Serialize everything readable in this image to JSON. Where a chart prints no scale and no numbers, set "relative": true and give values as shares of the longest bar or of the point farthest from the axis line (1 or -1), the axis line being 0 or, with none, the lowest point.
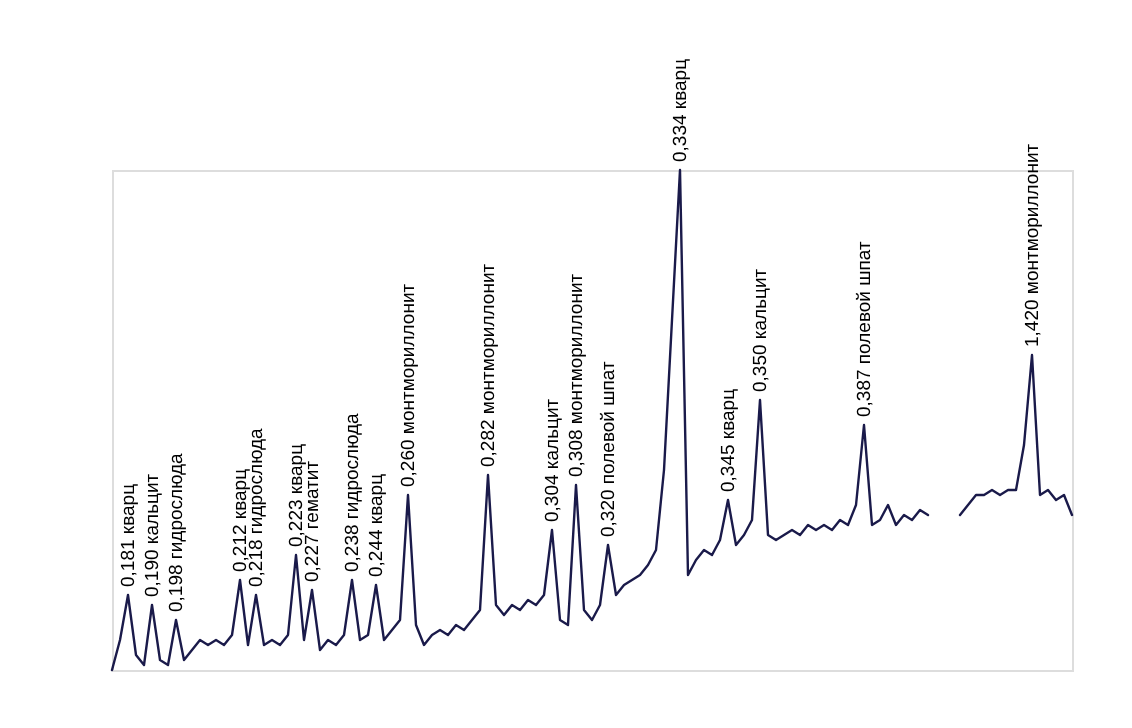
{
  "chart_data": {
    "type": "line",
    "relative": true,
    "categories": [
      null,
      null,
      null,
      null,
      null,
      null,
      null,
      null,
      null,
      null,
      null,
      null,
      null,
      null,
      null,
      null,
      null,
      null,
      null,
      null,
      null,
      null,
      null,
      null,
      null,
      null,
      null,
      null,
      null,
      null,
      null,
      null,
      null,
      null,
      null,
      null,
      null,
      null,
      null,
      null,
      null,
      null,
      null,
      null,
      null,
      null,
      null,
      null,
      null,
      null,
      null,
      null,
      null,
      null,
      null,
      null,
      null,
      null,
      null,
      null,
      null,
      null,
      null,
      null,
      null,
      null,
      null,
      null,
      null,
      null,
      null,
      null,
      null,
      null,
      null,
      null,
      null,
      null,
      null,
      null,
      null,
      null,
      null,
      null,
      null,
      null,
      null,
      null,
      null,
      null,
      null,
      null,
      null,
      null,
      null,
      null,
      null,
      null,
      null,
      null,
      null,
      null,
      null,
      null,
      null,
      null,
      null,
      null,
      null,
      null,
      null,
      null,
      null,
      null,
      null,
      null,
      null,
      null,
      null,
      null,
      null
    ],
    "series": [
      {
        "color": "#1a1a4a",
        "values": [
          0.0,
          0.06,
          0.15,
          0.03,
          0.01,
          0.13,
          0.02,
          0.01,
          0.1,
          0.02,
          0.04,
          0.06,
          0.05,
          0.06,
          0.05,
          0.07,
          0.18,
          0.05,
          0.15,
          0.05,
          0.06,
          0.05,
          0.07,
          0.23,
          0.06,
          0.16,
          0.04,
          0.06,
          0.05,
          0.07,
          0.18,
          0.06,
          0.07,
          0.17,
          0.06,
          0.08,
          0.1,
          0.35,
          0.09,
          0.05,
          0.07,
          0.08,
          0.07,
          0.09,
          0.08,
          0.1,
          0.12,
          0.39,
          0.13,
          0.11,
          0.13,
          0.12,
          0.14,
          0.13,
          0.15,
          0.28,
          0.1,
          0.09,
          0.37,
          0.12,
          0.1,
          0.13,
          0.25,
          0.15,
          0.17,
          0.18,
          0.19,
          0.21,
          0.24,
          0.4,
          0.7,
          1.0,
          0.19,
          0.22,
          0.24,
          0.23,
          0.26,
          0.34,
          0.25,
          0.27,
          0.3,
          0.54,
          0.27,
          0.26,
          0.27,
          0.28,
          0.27,
          0.29,
          0.28,
          0.29,
          0.28,
          0.3,
          0.29,
          0.33,
          0.49,
          0.29,
          0.3,
          0.33,
          0.29,
          0.31,
          0.3,
          0.32,
          0.31,
          null,
          null,
          null,
          null,
          null,
          null,
          null,
          null,
          null,
          null,
          null,
          null,
          null,
          null,
          null,
          null,
          null,
          null
        ]
      },
      {
        "color": "#1a1a4a",
        "values": [
          null,
          null,
          null,
          null,
          null,
          null,
          null,
          null,
          null,
          null,
          null,
          null,
          null,
          null,
          null,
          null,
          null,
          null,
          null,
          null,
          null,
          null,
          null,
          null,
          null,
          null,
          null,
          null,
          null,
          null,
          null,
          null,
          null,
          null,
          null,
          null,
          null,
          null,
          null,
          null,
          null,
          null,
          null,
          null,
          null,
          null,
          null,
          null,
          null,
          null,
          null,
          null,
          null,
          null,
          null,
          null,
          null,
          null,
          null,
          null,
          null,
          null,
          null,
          null,
          null,
          null,
          null,
          null,
          null,
          null,
          null,
          null,
          null,
          null,
          null,
          null,
          null,
          null,
          null,
          null,
          null,
          null,
          null,
          null,
          null,
          null,
          null,
          null,
          null,
          null,
          null,
          null,
          null,
          null,
          null,
          null,
          null,
          null,
          null,
          null,
          null,
          null,
          null,
          null,
          null,
          null,
          0.31,
          0.33,
          0.35,
          0.35,
          0.36,
          0.35,
          0.36,
          0.36,
          0.45,
          0.63,
          0.35,
          0.36,
          0.34,
          0.35,
          0.31
        ]
      }
    ],
    "annotations": [
      "0,181 кварц",
      "0,190 кальцит",
      "0,198 гидрослюда",
      "0,212 кварц",
      "0,218 гидрослюда",
      "0,223 кварц",
      "0,227 гематит",
      "0,238 гидрослюда",
      "0,244 кварц",
      "0,260 монтмориллонит",
      "0,282 монтмориллонит",
      "0,304 кальцит",
      "0,308 монтмориллонит",
      "0,320 полевой шпат",
      "0,334 кварц",
      "0,345 кварц",
      "0,350 кальцит",
      "0,387 полевой шпат",
      "1,420 монтмориллонит"
    ]
  }
}
